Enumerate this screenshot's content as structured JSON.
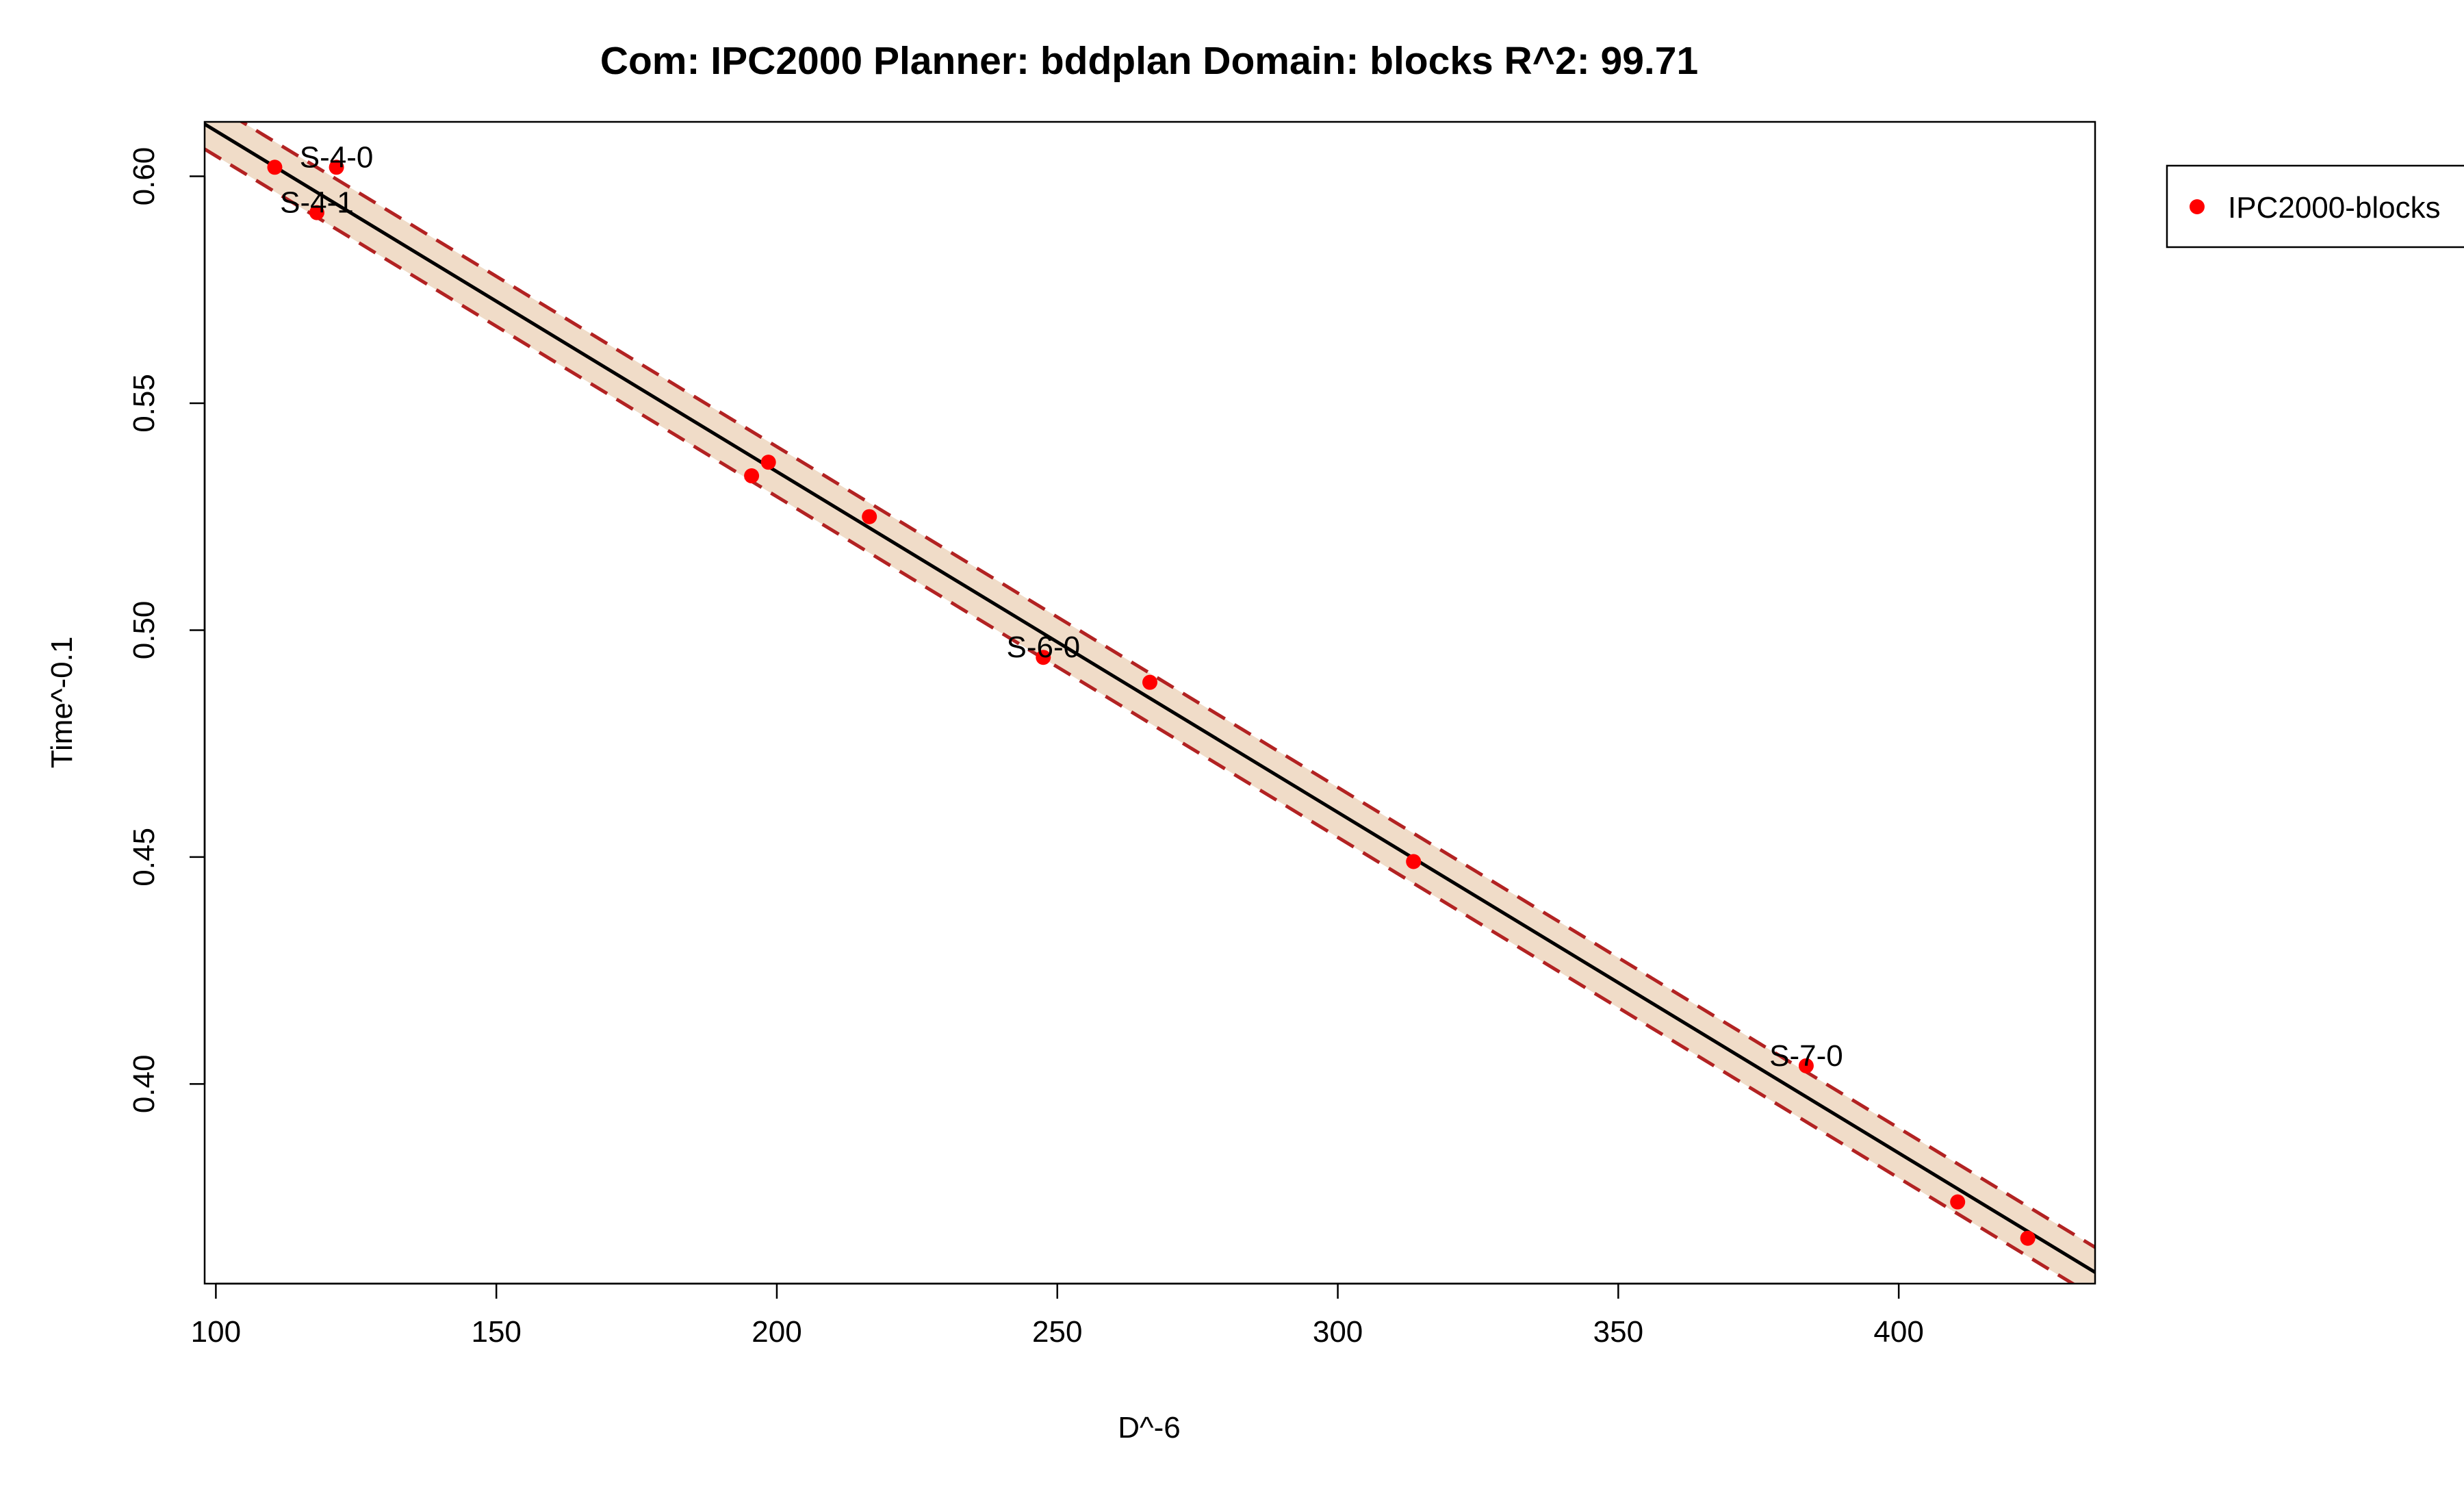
{
  "chart_data": {
    "type": "scatter",
    "title": "Com: IPC2000 Planner: bddplan Domain: blocks R^2: 99.71",
    "xlabel": "D^-6",
    "ylabel": "Time^-0.1",
    "xlim": [
      98,
      435
    ],
    "ylim": [
      0.356,
      0.612
    ],
    "x_ticks": [
      100,
      150,
      200,
      250,
      300,
      350,
      400
    ],
    "x_tick_labels": [
      "100",
      "150",
      "200",
      "250",
      "300",
      "350",
      "400"
    ],
    "y_ticks": [
      0.4,
      0.45,
      0.5,
      0.55,
      0.6
    ],
    "y_tick_labels": [
      "0.40",
      "0.45",
      "0.50",
      "0.55",
      "0.60"
    ],
    "grid": false,
    "legend_position": "right-outside-top",
    "series": [
      {
        "name": "IPC2000-blocks",
        "color": "#ff0000",
        "points": [
          {
            "x": 110.5,
            "y": 0.602
          },
          {
            "x": 121.5,
            "y": 0.602
          },
          {
            "x": 118.0,
            "y": 0.592
          },
          {
            "x": 195.5,
            "y": 0.534
          },
          {
            "x": 198.5,
            "y": 0.537
          },
          {
            "x": 216.5,
            "y": 0.525
          },
          {
            "x": 247.5,
            "y": 0.494
          },
          {
            "x": 266.5,
            "y": 0.4885
          },
          {
            "x": 313.5,
            "y": 0.449
          },
          {
            "x": 383.5,
            "y": 0.404
          },
          {
            "x": 410.5,
            "y": 0.374
          },
          {
            "x": 423.0,
            "y": 0.366
          }
        ]
      }
    ],
    "point_labels": [
      {
        "text": "S-4-0",
        "x": 121.5,
        "y": 0.602
      },
      {
        "text": "S-4-1",
        "x": 118.0,
        "y": 0.592
      },
      {
        "text": "S-6-0",
        "x": 247.5,
        "y": 0.494
      },
      {
        "text": "S-7-0",
        "x": 383.5,
        "y": 0.404
      }
    ],
    "fit_line": {
      "type": "linear",
      "points": [
        [
          98,
          0.6115
        ],
        [
          435,
          0.3585
        ]
      ],
      "color": "#000000"
    },
    "confidence_band": {
      "offset": 0.0055,
      "fill": "#f0dcc8",
      "line_color": "#b22222"
    }
  }
}
